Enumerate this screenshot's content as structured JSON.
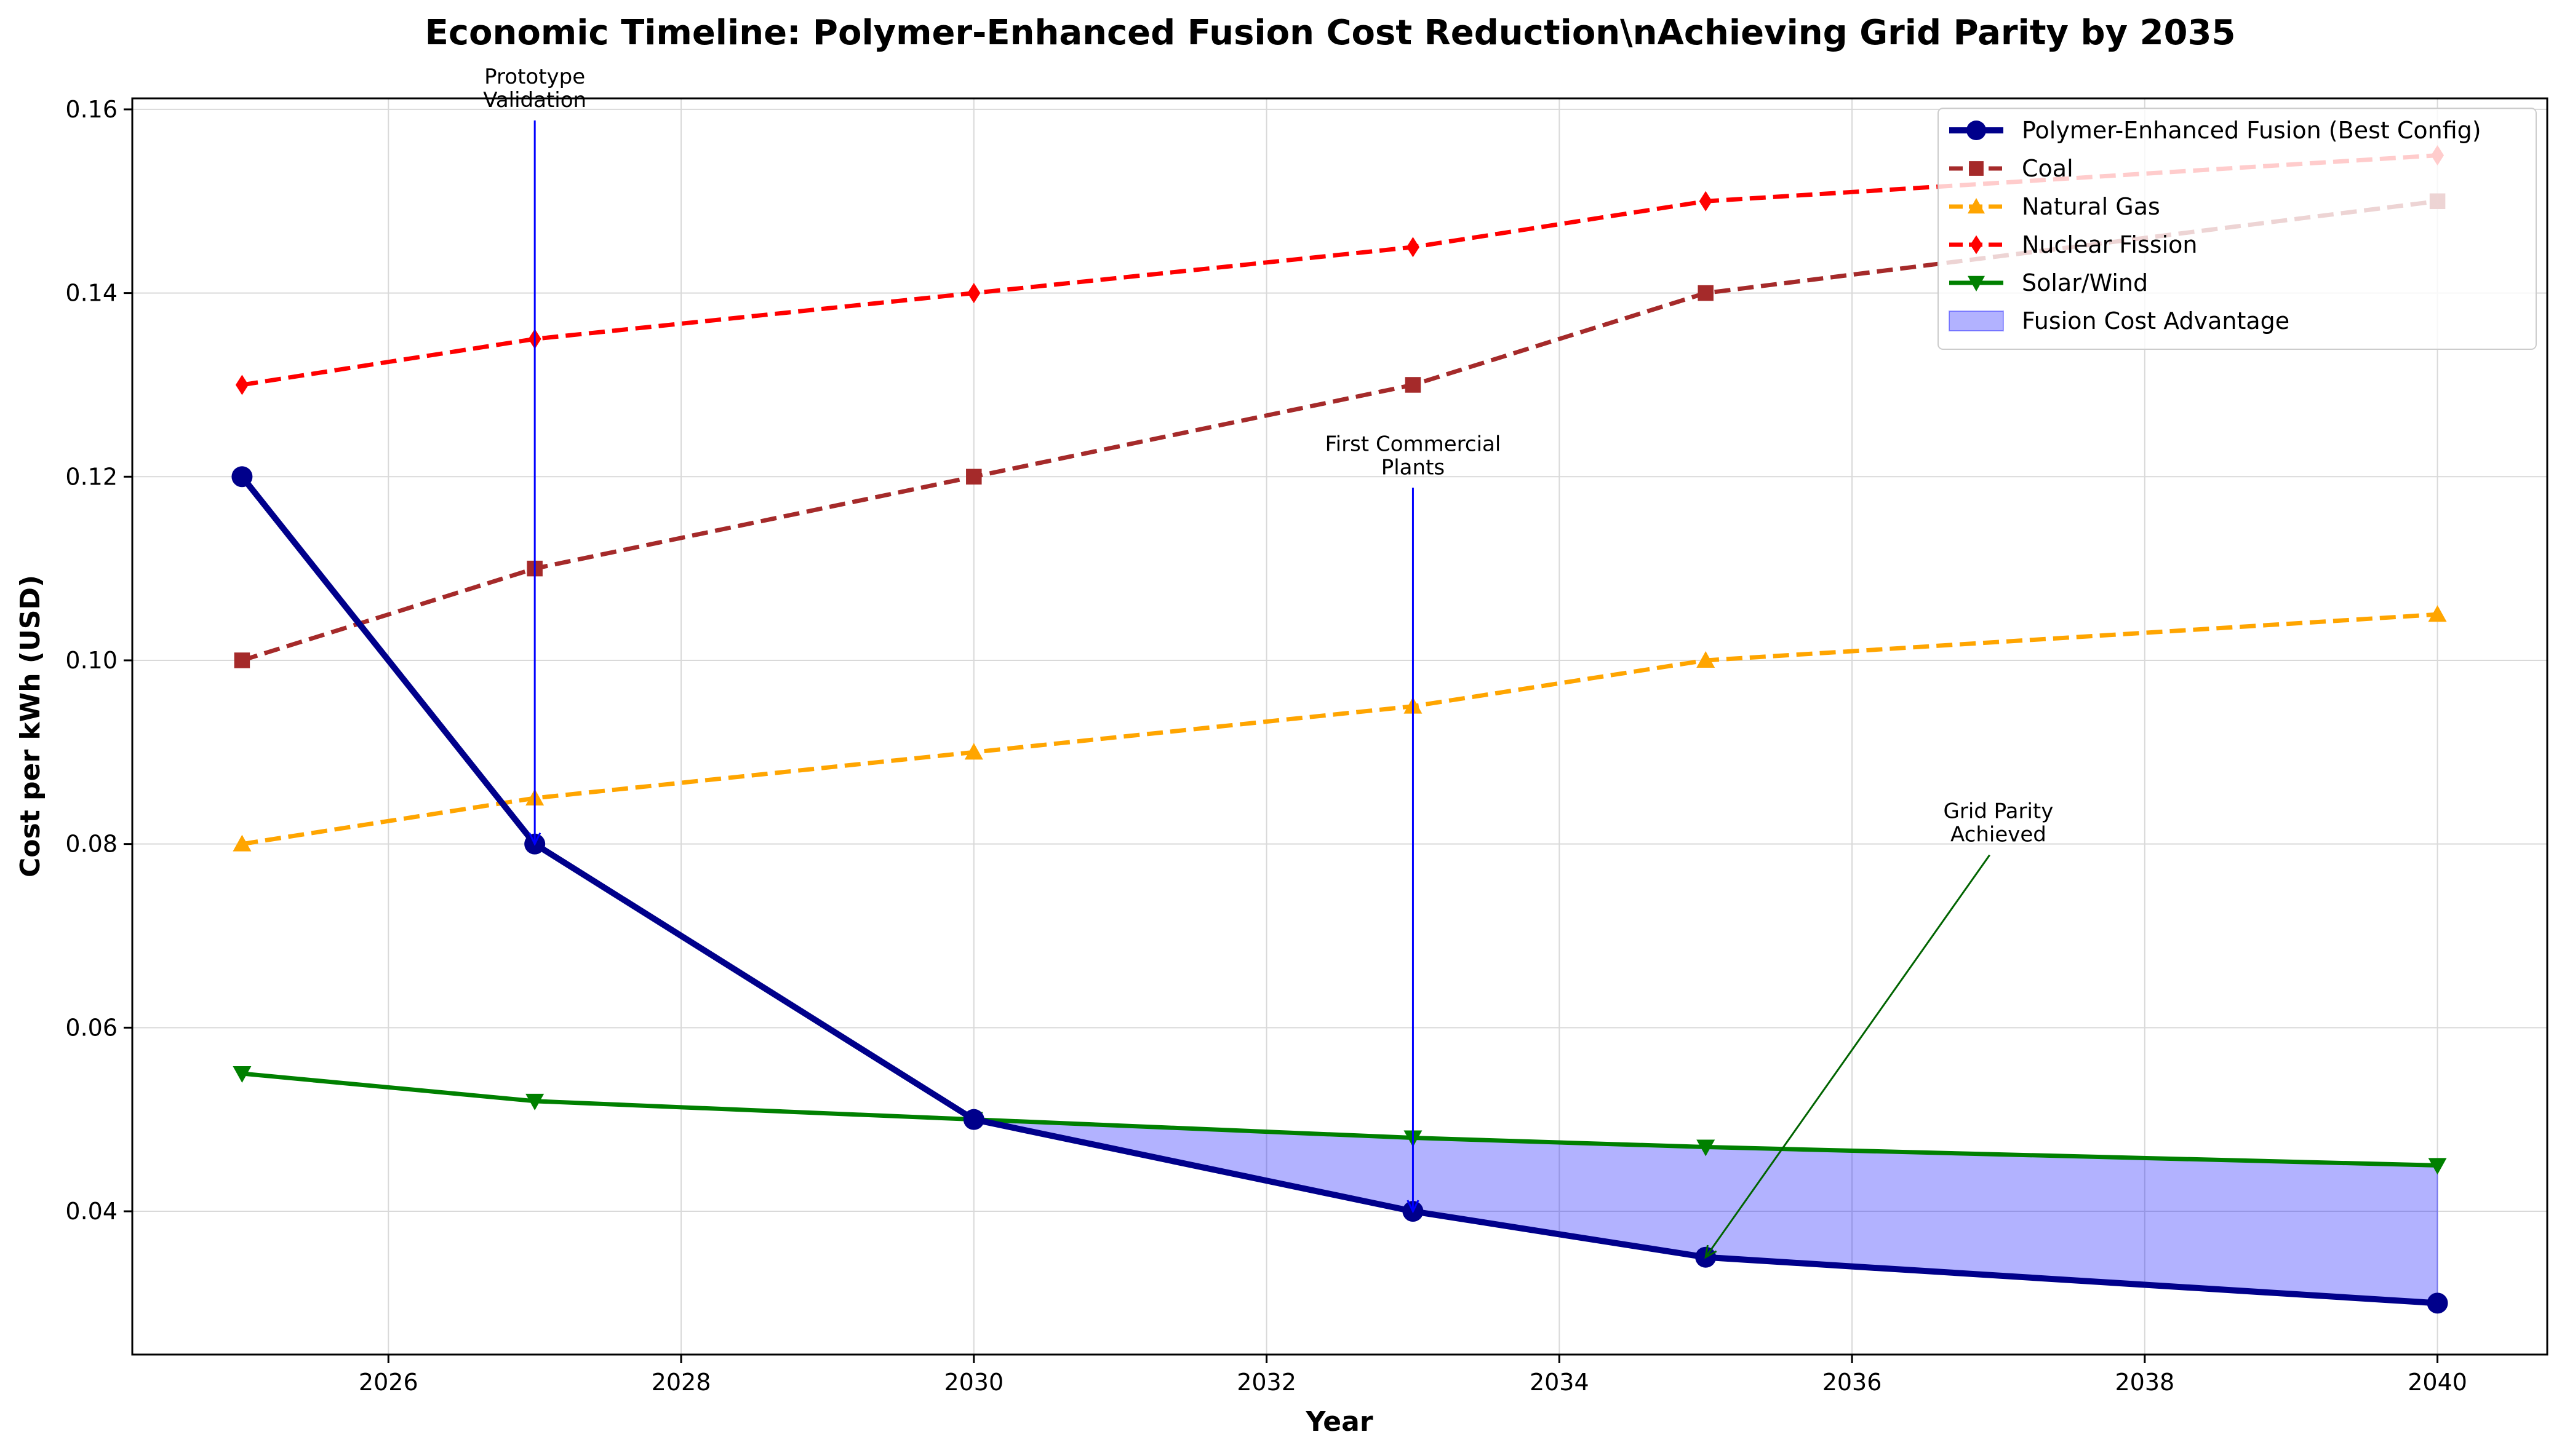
{
  "chart_data": {
    "type": "line",
    "title": "Economic Timeline: Polymer-Enhanced Fusion Cost Reduction\\nAchieving Grid Parity by 2035",
    "xlabel": "Year",
    "ylabel": "Cost per kWh (USD)",
    "xlim": [
      2024.25,
      2040.75
    ],
    "ylim": [
      0.0244,
      0.1612
    ],
    "xticks": [
      2026,
      2028,
      2030,
      2032,
      2034,
      2036,
      2038,
      2040
    ],
    "yticks": [
      0.04,
      0.06,
      0.08,
      0.1,
      0.12,
      0.14,
      0.16
    ],
    "ytick_labels": [
      "0.04",
      "0.06",
      "0.08",
      "0.10",
      "0.12",
      "0.14",
      "0.16"
    ],
    "grid": true,
    "legend_position": "top-right",
    "x": [
      2025,
      2027,
      2030,
      2033,
      2035,
      2040
    ],
    "series": [
      {
        "name": "Polymer-Enhanced Fusion (Best Config)",
        "values": [
          0.12,
          0.08,
          0.05,
          0.04,
          0.035,
          0.03
        ],
        "color": "#00008b",
        "style": "solid",
        "marker": "circle",
        "width": 10
      },
      {
        "name": "Coal",
        "values": [
          0.1,
          0.11,
          0.12,
          0.13,
          0.14,
          0.15
        ],
        "color": "#a52a2a",
        "style": "dashed",
        "marker": "square",
        "width": 7
      },
      {
        "name": "Natural Gas",
        "values": [
          0.08,
          0.085,
          0.09,
          0.095,
          0.1,
          0.105
        ],
        "color": "#ffa500",
        "style": "dashed",
        "marker": "triangle-up",
        "width": 7
      },
      {
        "name": "Nuclear Fission",
        "values": [
          0.13,
          0.135,
          0.14,
          0.145,
          0.15,
          0.155
        ],
        "color": "#ff0000",
        "style": "dashed",
        "marker": "diamond",
        "width": 7
      },
      {
        "name": "Solar/Wind",
        "values": [
          0.055,
          0.052,
          0.05,
          0.048,
          0.047,
          0.045
        ],
        "color": "#008000",
        "style": "solid",
        "marker": "triangle-down",
        "width": 7
      }
    ],
    "fill": {
      "name": "Fusion Cost Advantage",
      "color": "#0000ff",
      "opacity": 0.3,
      "between": [
        "Solar/Wind",
        "Polymer-Enhanced Fusion (Best Config)"
      ],
      "from_x": 2030,
      "to_x": 2040
    },
    "annotations": [
      {
        "lines": [
          "Prototype",
          "Validation"
        ],
        "text_at": [
          2027,
          0.16
        ],
        "arrow_to": [
          2027,
          0.08
        ],
        "color": "#0000ff"
      },
      {
        "lines": [
          "First Commercial",
          "Plants"
        ],
        "text_at": [
          2033,
          0.12
        ],
        "arrow_to": [
          2033,
          0.04
        ],
        "color": "#0000ff"
      },
      {
        "lines": [
          "Grid Parity",
          "Achieved"
        ],
        "text_at": [
          2037,
          0.08
        ],
        "arrow_to": [
          2035,
          0.035
        ],
        "color": "#006400"
      }
    ]
  }
}
